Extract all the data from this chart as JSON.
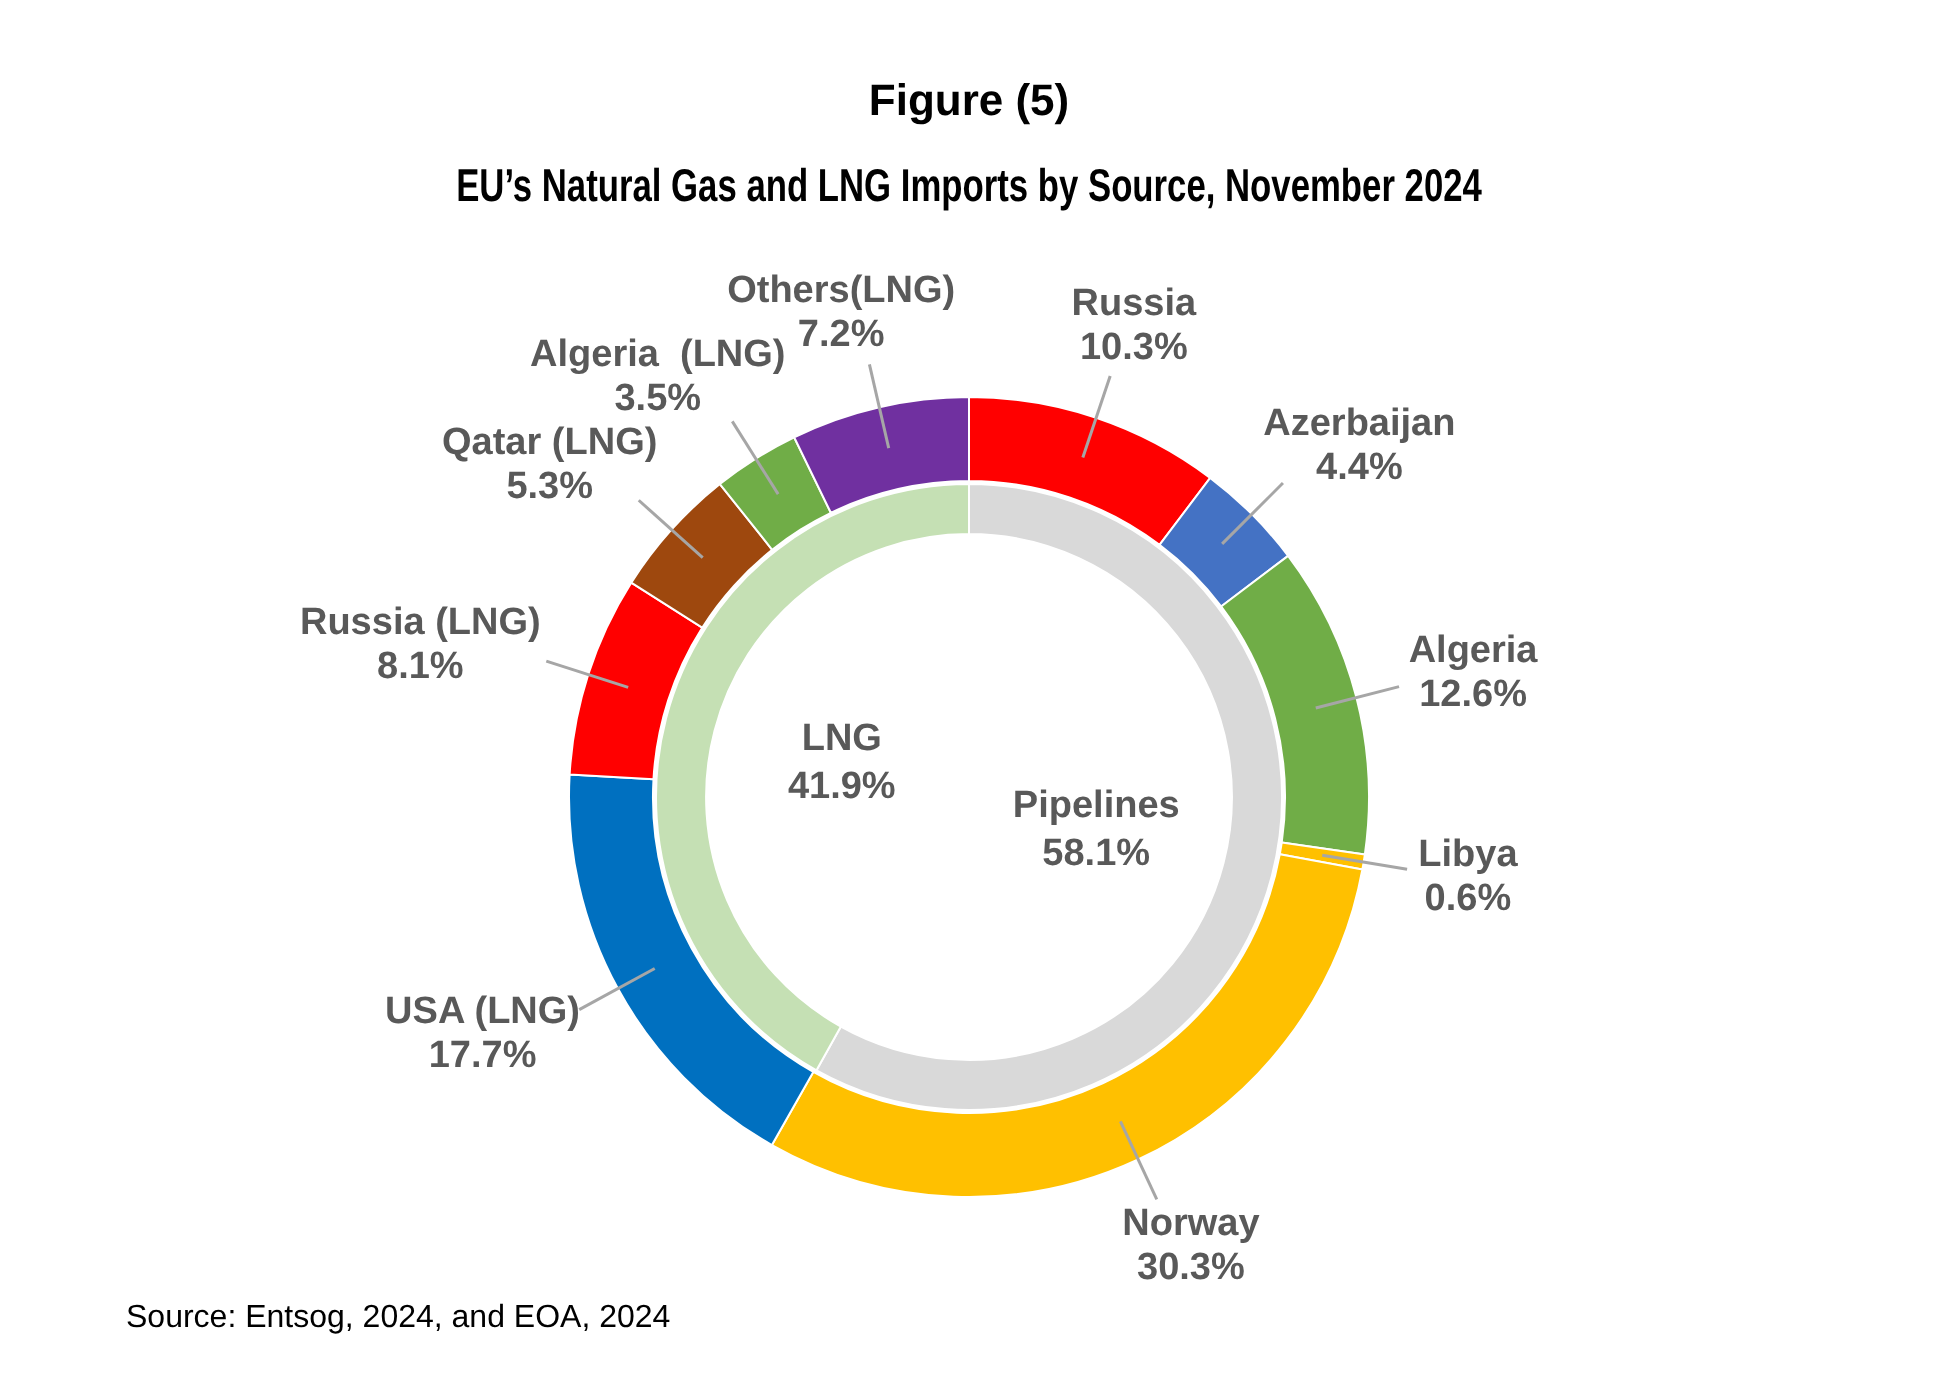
{
  "chart_data": [
    {
      "type": "donut",
      "title": "Figure (5)",
      "subtitle": "EU’s Natural Gas and LNG Imports by Source, November 2024",
      "legend": false,
      "categories": [
        "Russia",
        "Azerbaijan",
        "Algeria",
        "Libya",
        "Norway",
        "USA (LNG)",
        "Russia (LNG)",
        "Qatar (LNG)",
        "Algeria  (LNG)",
        "Others(LNG)"
      ],
      "values": [
        10.3,
        4.4,
        12.6,
        0.6,
        30.3,
        17.7,
        8.1,
        5.3,
        3.5,
        7.2
      ],
      "colors": [
        "#ff0000",
        "#4472c4",
        "#70ad47",
        "#ffc000",
        "#ffc000",
        "#0070c0",
        "#ff0000",
        "#9e480e",
        "#70ad47",
        "#7030a0"
      ],
      "value_labels": [
        "10.3%",
        "4.4%",
        "12.6%",
        "0.6%",
        "30.3%",
        "17.7%",
        "8.1%",
        "5.3%",
        "3.5%",
        "7.2%"
      ],
      "annotations": [
        "Source: Entsog, 2024, and EOA, 2024"
      ]
    },
    {
      "type": "donut",
      "legend": false,
      "categories": [
        "Pipelines",
        "LNG"
      ],
      "values": [
        58.1,
        41.9
      ],
      "colors": [
        "#d9d9d9",
        "#c5e0b4"
      ],
      "value_labels": [
        "58.1%",
        "41.9%"
      ]
    }
  ]
}
